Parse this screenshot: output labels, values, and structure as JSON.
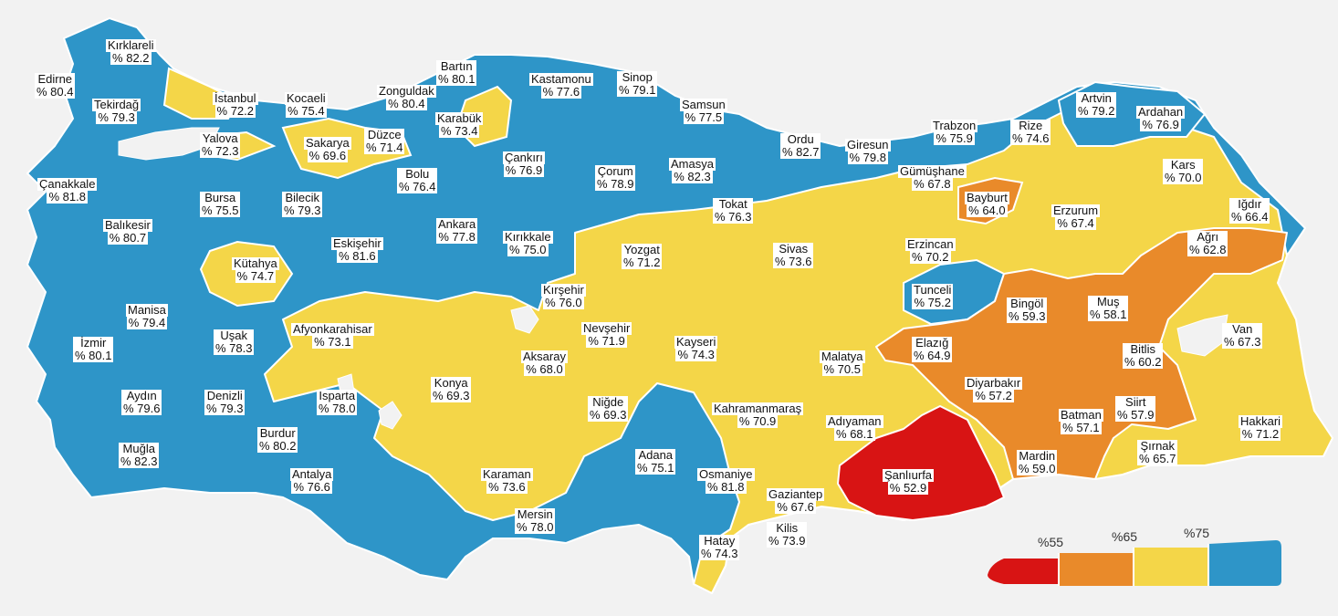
{
  "colors": {
    "blue": "#2e95c8",
    "yellow": "#f4d648",
    "orange": "#e98a2a",
    "red": "#d81414",
    "border": "#ffffff"
  },
  "provinces": [
    {
      "name": "Kırklareli",
      "value": "% 82.2",
      "color": "blue"
    },
    {
      "name": "Edirne",
      "value": "% 80.4",
      "color": "blue"
    },
    {
      "name": "Tekirdağ",
      "value": "% 79.3",
      "color": "blue"
    },
    {
      "name": "İstanbul",
      "value": "% 72.2",
      "color": "yellow"
    },
    {
      "name": "Kocaeli",
      "value": "% 75.4",
      "color": "blue"
    },
    {
      "name": "Yalova",
      "value": "% 72.3",
      "color": "yellow"
    },
    {
      "name": "Sakarya",
      "value": "% 69.6",
      "color": "yellow"
    },
    {
      "name": "Düzce",
      "value": "% 71.4",
      "color": "yellow"
    },
    {
      "name": "Zonguldak",
      "value": "% 80.4",
      "color": "blue"
    },
    {
      "name": "Bartın",
      "value": "% 80.1",
      "color": "blue"
    },
    {
      "name": "Karabük",
      "value": "% 73.4",
      "color": "yellow"
    },
    {
      "name": "Kastamonu",
      "value": "% 77.6",
      "color": "blue"
    },
    {
      "name": "Sinop",
      "value": "% 79.1",
      "color": "blue"
    },
    {
      "name": "Samsun",
      "value": "% 77.5",
      "color": "blue"
    },
    {
      "name": "Çanakkale",
      "value": "% 81.8",
      "color": "blue"
    },
    {
      "name": "Bursa",
      "value": "% 75.5",
      "color": "blue"
    },
    {
      "name": "Bilecik",
      "value": "% 79.3",
      "color": "blue"
    },
    {
      "name": "Bolu",
      "value": "% 76.4",
      "color": "blue"
    },
    {
      "name": "Çankırı",
      "value": "% 76.9",
      "color": "blue"
    },
    {
      "name": "Çorum",
      "value": "% 78.9",
      "color": "blue"
    },
    {
      "name": "Amasya",
      "value": "% 82.3",
      "color": "blue"
    },
    {
      "name": "Ordu",
      "value": "% 82.7",
      "color": "blue"
    },
    {
      "name": "Giresun",
      "value": "% 79.8",
      "color": "blue"
    },
    {
      "name": "Trabzon",
      "value": "% 75.9",
      "color": "blue"
    },
    {
      "name": "Rize",
      "value": "% 74.6",
      "color": "yellow"
    },
    {
      "name": "Artvin",
      "value": "% 79.2",
      "color": "blue"
    },
    {
      "name": "Ardahan",
      "value": "% 76.9",
      "color": "blue"
    },
    {
      "name": "Gümüşhane",
      "value": "% 67.8",
      "color": "yellow"
    },
    {
      "name": "Bayburt",
      "value": "% 64.0",
      "color": "orange"
    },
    {
      "name": "Kars",
      "value": "% 70.0",
      "color": "yellow"
    },
    {
      "name": "Tokat",
      "value": "% 76.3",
      "color": "blue"
    },
    {
      "name": "Balıkesir",
      "value": "% 80.7",
      "color": "blue"
    },
    {
      "name": "Eskişehir",
      "value": "% 81.6",
      "color": "blue"
    },
    {
      "name": "Ankara",
      "value": "% 77.8",
      "color": "blue"
    },
    {
      "name": "Kırıkkale",
      "value": "% 75.0",
      "color": "blue"
    },
    {
      "name": "Yozgat",
      "value": "% 71.2",
      "color": "yellow"
    },
    {
      "name": "Sivas",
      "value": "% 73.6",
      "color": "yellow"
    },
    {
      "name": "Erzincan",
      "value": "% 70.2",
      "color": "yellow"
    },
    {
      "name": "Erzurum",
      "value": "% 67.4",
      "color": "yellow"
    },
    {
      "name": "Iğdır",
      "value": "% 66.4",
      "color": "yellow"
    },
    {
      "name": "Ağrı",
      "value": "% 62.8",
      "color": "orange"
    },
    {
      "name": "Kütahya",
      "value": "% 74.7",
      "color": "yellow"
    },
    {
      "name": "Manisa",
      "value": "% 79.4",
      "color": "blue"
    },
    {
      "name": "Kırşehir",
      "value": "% 76.0",
      "color": "blue"
    },
    {
      "name": "Tunceli",
      "value": "% 75.2",
      "color": "blue"
    },
    {
      "name": "Bingöl",
      "value": "% 59.3",
      "color": "orange"
    },
    {
      "name": "Muş",
      "value": "% 58.1",
      "color": "orange"
    },
    {
      "name": "Uşak",
      "value": "% 78.3",
      "color": "blue"
    },
    {
      "name": "Afyonkarahisar",
      "value": "% 73.1",
      "color": "yellow"
    },
    {
      "name": "İzmir",
      "value": "% 80.1",
      "color": "blue"
    },
    {
      "name": "Nevşehir",
      "value": "% 71.9",
      "color": "yellow"
    },
    {
      "name": "Aksaray",
      "value": "% 68.0",
      "color": "yellow"
    },
    {
      "name": "Kayseri",
      "value": "% 74.3",
      "color": "yellow"
    },
    {
      "name": "Van",
      "value": "% 67.3",
      "color": "yellow"
    },
    {
      "name": "Elazığ",
      "value": "% 64.9",
      "color": "orange"
    },
    {
      "name": "Malatya",
      "value": "% 70.5",
      "color": "yellow"
    },
    {
      "name": "Bitlis",
      "value": "% 60.2",
      "color": "orange"
    },
    {
      "name": "Aydın",
      "value": "% 79.6",
      "color": "blue"
    },
    {
      "name": "Denizli",
      "value": "% 79.3",
      "color": "blue"
    },
    {
      "name": "Isparta",
      "value": "% 78.0",
      "color": "blue"
    },
    {
      "name": "Konya",
      "value": "% 69.3",
      "color": "yellow"
    },
    {
      "name": "Niğde",
      "value": "% 69.3",
      "color": "yellow"
    },
    {
      "name": "Diyarbakır",
      "value": "% 57.2",
      "color": "orange"
    },
    {
      "name": "Siirt",
      "value": "% 57.9",
      "color": "orange"
    },
    {
      "name": "Kahramanmaraş",
      "value": "% 70.9",
      "color": "yellow"
    },
    {
      "name": "Batman",
      "value": "% 57.1",
      "color": "orange"
    },
    {
      "name": "Hakkari",
      "value": "% 71.2",
      "color": "yellow"
    },
    {
      "name": "Muğla",
      "value": "% 82.3",
      "color": "blue"
    },
    {
      "name": "Burdur",
      "value": "% 80.2",
      "color": "blue"
    },
    {
      "name": "Adıyaman",
      "value": "% 68.1",
      "color": "yellow"
    },
    {
      "name": "Adana",
      "value": "% 75.1",
      "color": "blue"
    },
    {
      "name": "Şırnak",
      "value": "% 65.7",
      "color": "yellow"
    },
    {
      "name": "Antalya",
      "value": "% 76.6",
      "color": "blue"
    },
    {
      "name": "Karaman",
      "value": "% 73.6",
      "color": "yellow"
    },
    {
      "name": "Osmaniye",
      "value": "% 81.8",
      "color": "blue"
    },
    {
      "name": "Şanlıurfa",
      "value": "% 52.9",
      "color": "red"
    },
    {
      "name": "Mardin",
      "value": "% 59.0",
      "color": "orange"
    },
    {
      "name": "Gaziantep",
      "value": "% 67.6",
      "color": "yellow"
    },
    {
      "name": "Mersin",
      "value": "% 78.0",
      "color": "blue"
    },
    {
      "name": "Kilis",
      "value": "% 73.9",
      "color": "yellow"
    },
    {
      "name": "Hatay",
      "value": "% 74.3",
      "color": "yellow"
    }
  ],
  "legend": {
    "thresholds": [
      "%55",
      "%65",
      "%75"
    ],
    "bins": [
      "red",
      "orange",
      "yellow",
      "blue"
    ]
  }
}
